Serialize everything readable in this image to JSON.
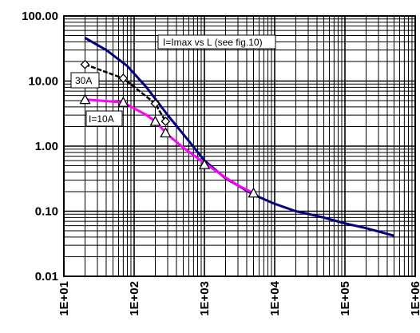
{
  "chart_data": {
    "type": "line",
    "title": "",
    "xlabel": "",
    "ylabel": "",
    "x_scale": "log",
    "y_scale": "log",
    "xlim": [
      10,
      1000000
    ],
    "ylim": [
      0.01,
      100
    ],
    "grid": true,
    "y_tick_labels": [
      "100.00",
      "10.00",
      "1.00",
      "0.10",
      "0.01"
    ],
    "x_tick_labels": [
      "1E+01",
      "1E+02",
      "1E+03",
      "1E+04",
      "1E+05",
      "1E+06"
    ],
    "annotations": [
      "I=Imax vs L (see fig.10)",
      "30A",
      "I=10A"
    ],
    "series": [
      {
        "color": "#000080",
        "x": [
          20,
          40,
          80,
          150,
          300,
          600,
          1000,
          2000,
          5000,
          10000,
          20000,
          50000,
          100000,
          200000,
          500000
        ],
        "y": [
          46,
          30,
          17,
          8,
          3,
          1.2,
          0.6,
          0.32,
          0.18,
          0.13,
          0.1,
          0.08,
          0.065,
          0.055,
          0.042
        ]
      },
      {
        "color": "#000000",
        "marker": "diamond",
        "x": [
          20,
          70,
          200,
          280
        ],
        "y": [
          18,
          11,
          4.5,
          2.4
        ]
      },
      {
        "color": "#ff00ff",
        "x": [
          20,
          70,
          150,
          200,
          300,
          500,
          1000,
          2000,
          3000,
          5000
        ],
        "y": [
          5.2,
          4.7,
          3.0,
          2.4,
          1.5,
          0.95,
          0.55,
          0.33,
          0.25,
          0.19
        ]
      },
      {
        "color": "#000000",
        "marker": "triangle",
        "x": [
          20,
          70,
          200,
          280,
          1000,
          5000
        ],
        "y": [
          5.2,
          4.7,
          2.4,
          1.6,
          0.52,
          0.19
        ]
      }
    ]
  }
}
